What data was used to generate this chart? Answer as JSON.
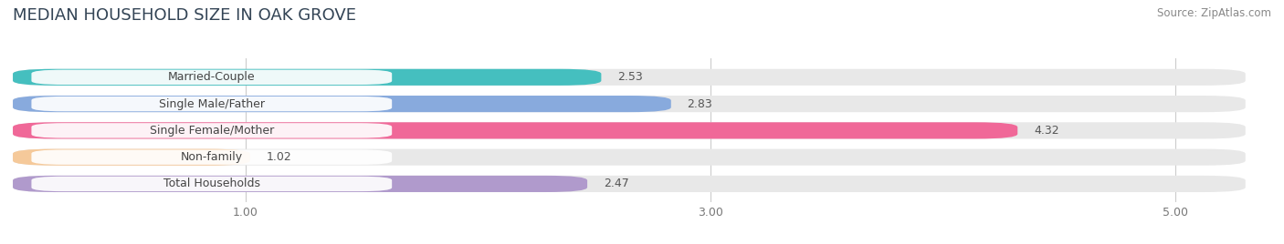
{
  "title": "MEDIAN HOUSEHOLD SIZE IN OAK GROVE",
  "source": "Source: ZipAtlas.com",
  "categories": [
    "Married-Couple",
    "Single Male/Father",
    "Single Female/Mother",
    "Non-family",
    "Total Households"
  ],
  "values": [
    2.53,
    2.83,
    4.32,
    1.02,
    2.47
  ],
  "bar_colors": [
    "#45bfbf",
    "#88aadd",
    "#f06898",
    "#f5c99a",
    "#b09acc"
  ],
  "bar_bg_color": "#e8e8e8",
  "xlim": [
    0,
    5.3
  ],
  "xticks": [
    1.0,
    3.0,
    5.0
  ],
  "title_fontsize": 13,
  "label_fontsize": 9,
  "value_fontsize": 9,
  "source_fontsize": 8.5,
  "bar_height": 0.62,
  "background_color": "#ffffff"
}
